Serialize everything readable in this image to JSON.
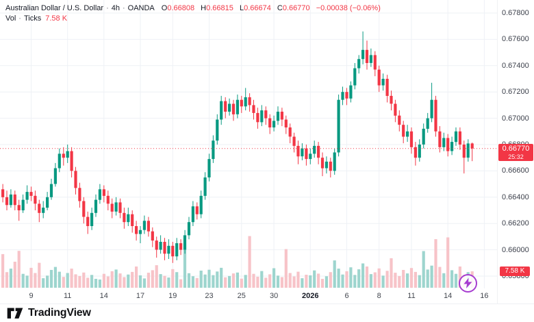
{
  "header": {
    "symbol_title": "Australian Dollar / U.S. Dollar",
    "separator": "·",
    "interval": "4h",
    "exchange": "OANDA",
    "ohlc": {
      "o_label": "O",
      "o": "0.66808",
      "h_label": "H",
      "h": "0.66815",
      "l_label": "L",
      "l": "0.66674",
      "c_label": "C",
      "c": "0.66770",
      "change": "−0.00038 (−0.06%)"
    },
    "volume_row": {
      "label": "Vol",
      "separator": "·",
      "source": "Ticks",
      "value": "7.58 K"
    }
  },
  "price_scale": {
    "last_price_label": "0.66770",
    "countdown": "25:32",
    "volume_badge_label": "7.58 K"
  },
  "footer": {
    "brand": "TradingView"
  },
  "colors": {
    "up": "#089981",
    "down": "#f23645",
    "vol_up": "#9dd5ce",
    "vol_down": "#f7c3c8",
    "badge": "#f23645",
    "grid": "#eef1f6",
    "axis_text": "#3c404b",
    "text": "#131722",
    "purple": "#a63cd0"
  },
  "chart_data": {
    "type": "candlestick",
    "title": "Australian Dollar / U.S. Dollar · 4h · OANDA",
    "symbol": "AUD/USD",
    "interval": "4h",
    "exchange": "OANDA",
    "legend_position": "top-left",
    "grid": true,
    "ylim": [
      0.65706,
      0.67899
    ],
    "y_ticks": [
      "0.67800",
      "0.67600",
      "0.67400",
      "0.67200",
      "0.67000",
      "0.66800",
      "0.66600",
      "0.66400",
      "0.66200",
      "0.66000",
      "0.65800"
    ],
    "x_ticks": [
      {
        "i": 7,
        "label": "9"
      },
      {
        "i": 16,
        "label": "11"
      },
      {
        "i": 25,
        "label": "14"
      },
      {
        "i": 34,
        "label": "17"
      },
      {
        "i": 42,
        "label": "19"
      },
      {
        "i": 51,
        "label": "23"
      },
      {
        "i": 59,
        "label": "25"
      },
      {
        "i": 67,
        "label": "30"
      },
      {
        "i": 76,
        "label": "2026",
        "bold": true
      },
      {
        "i": 85,
        "label": "6"
      },
      {
        "i": 93,
        "label": "8"
      },
      {
        "i": 101,
        "label": "11"
      },
      {
        "i": 110,
        "label": "14"
      },
      {
        "i": 119,
        "label": "16"
      }
    ],
    "last_price": 0.6677,
    "last_volume_k": 7.58,
    "volume_axis_max_k": 24,
    "candles": [
      [
        0.6646,
        0.665,
        0.6636,
        0.664
      ],
      [
        0.664,
        0.6645,
        0.663,
        0.6634
      ],
      [
        0.6634,
        0.6646,
        0.6632,
        0.6642
      ],
      [
        0.6642,
        0.6645,
        0.663,
        0.6634
      ],
      [
        0.6634,
        0.6638,
        0.6622,
        0.663
      ],
      [
        0.663,
        0.6642,
        0.6628,
        0.6638
      ],
      [
        0.6638,
        0.6649,
        0.6635,
        0.6644
      ],
      [
        0.6644,
        0.6648,
        0.6637,
        0.6641
      ],
      [
        0.6641,
        0.6645,
        0.663,
        0.6635
      ],
      [
        0.6635,
        0.6638,
        0.6621,
        0.6628
      ],
      [
        0.6628,
        0.6637,
        0.6624,
        0.6632
      ],
      [
        0.6632,
        0.6644,
        0.663,
        0.664
      ],
      [
        0.664,
        0.6654,
        0.6638,
        0.665
      ],
      [
        0.665,
        0.6666,
        0.6648,
        0.6662
      ],
      [
        0.6662,
        0.6677,
        0.6659,
        0.6673
      ],
      [
        0.6673,
        0.6678,
        0.6664,
        0.667
      ],
      [
        0.667,
        0.668,
        0.6666,
        0.6675
      ],
      [
        0.6675,
        0.6678,
        0.6655,
        0.666
      ],
      [
        0.666,
        0.6663,
        0.6642,
        0.6647
      ],
      [
        0.6647,
        0.6651,
        0.6632,
        0.6637
      ],
      [
        0.6637,
        0.664,
        0.662,
        0.6625
      ],
      [
        0.6625,
        0.6629,
        0.6612,
        0.6618
      ],
      [
        0.6618,
        0.6632,
        0.6615,
        0.6628
      ],
      [
        0.6628,
        0.6642,
        0.6625,
        0.6638
      ],
      [
        0.6638,
        0.665,
        0.6635,
        0.6646
      ],
      [
        0.6646,
        0.6649,
        0.6636,
        0.6641
      ],
      [
        0.6641,
        0.6645,
        0.663,
        0.6635
      ],
      [
        0.6635,
        0.6639,
        0.6624,
        0.6629
      ],
      [
        0.6629,
        0.664,
        0.6626,
        0.6636
      ],
      [
        0.6636,
        0.6639,
        0.6624,
        0.6628
      ],
      [
        0.6628,
        0.6632,
        0.6616,
        0.6621
      ],
      [
        0.6621,
        0.6632,
        0.6618,
        0.6627
      ],
      [
        0.6627,
        0.663,
        0.6613,
        0.6618
      ],
      [
        0.6618,
        0.6622,
        0.6607,
        0.6612
      ],
      [
        0.6612,
        0.6618,
        0.6605,
        0.6615
      ],
      [
        0.6615,
        0.6626,
        0.6612,
        0.6622
      ],
      [
        0.6622,
        0.6625,
        0.661,
        0.6614
      ],
      [
        0.6614,
        0.6617,
        0.6602,
        0.6607
      ],
      [
        0.6607,
        0.661,
        0.6594,
        0.66
      ],
      [
        0.66,
        0.6611,
        0.6597,
        0.6606
      ],
      [
        0.6606,
        0.6609,
        0.6592,
        0.6597
      ],
      [
        0.6597,
        0.6608,
        0.6593,
        0.6603
      ],
      [
        0.6603,
        0.6606,
        0.659,
        0.6595
      ],
      [
        0.6595,
        0.6609,
        0.6592,
        0.6605
      ],
      [
        0.6605,
        0.6608,
        0.6596,
        0.66
      ],
      [
        0.66,
        0.6615,
        0.6597,
        0.6611
      ],
      [
        0.6611,
        0.6625,
        0.6608,
        0.6621
      ],
      [
        0.6621,
        0.6637,
        0.6618,
        0.6633
      ],
      [
        0.6633,
        0.6636,
        0.6623,
        0.6627
      ],
      [
        0.6627,
        0.6645,
        0.6624,
        0.6641
      ],
      [
        0.6641,
        0.6659,
        0.6638,
        0.6655
      ],
      [
        0.6655,
        0.6673,
        0.6652,
        0.6669
      ],
      [
        0.6669,
        0.6687,
        0.6666,
        0.6683
      ],
      [
        0.6683,
        0.6703,
        0.668,
        0.6699
      ],
      [
        0.6699,
        0.6717,
        0.6695,
        0.6713
      ],
      [
        0.6713,
        0.6716,
        0.67,
        0.6705
      ],
      [
        0.6705,
        0.6715,
        0.6702,
        0.6711
      ],
      [
        0.6711,
        0.6714,
        0.6698,
        0.6703
      ],
      [
        0.6703,
        0.6718,
        0.67,
        0.6714
      ],
      [
        0.6714,
        0.6717,
        0.6704,
        0.6709
      ],
      [
        0.6709,
        0.6723,
        0.6706,
        0.6716
      ],
      [
        0.6716,
        0.6719,
        0.6705,
        0.671
      ],
      [
        0.671,
        0.6714,
        0.6699,
        0.6704
      ],
      [
        0.6704,
        0.6708,
        0.6692,
        0.6697
      ],
      [
        0.6697,
        0.671,
        0.6694,
        0.6706
      ],
      [
        0.6706,
        0.6709,
        0.6695,
        0.67
      ],
      [
        0.67,
        0.6703,
        0.6688,
        0.6693
      ],
      [
        0.6693,
        0.6702,
        0.669,
        0.6698
      ],
      [
        0.6698,
        0.6709,
        0.6695,
        0.6705
      ],
      [
        0.6705,
        0.6708,
        0.6694,
        0.6699
      ],
      [
        0.6699,
        0.6702,
        0.6688,
        0.6693
      ],
      [
        0.6693,
        0.6696,
        0.6681,
        0.6686
      ],
      [
        0.6686,
        0.6689,
        0.6674,
        0.6679
      ],
      [
        0.6679,
        0.6683,
        0.6665,
        0.6671
      ],
      [
        0.6671,
        0.6681,
        0.6668,
        0.6677
      ],
      [
        0.6677,
        0.668,
        0.6664,
        0.6669
      ],
      [
        0.6669,
        0.6677,
        0.6665,
        0.6673
      ],
      [
        0.6673,
        0.6683,
        0.667,
        0.6679
      ],
      [
        0.6679,
        0.6682,
        0.6665,
        0.667
      ],
      [
        0.667,
        0.6674,
        0.6656,
        0.6662
      ],
      [
        0.6662,
        0.6671,
        0.6658,
        0.6667
      ],
      [
        0.6667,
        0.667,
        0.6655,
        0.666
      ],
      [
        0.666,
        0.6677,
        0.6657,
        0.6674
      ],
      [
        0.6674,
        0.6718,
        0.6671,
        0.6714
      ],
      [
        0.6714,
        0.6724,
        0.671,
        0.672
      ],
      [
        0.672,
        0.6723,
        0.671,
        0.6715
      ],
      [
        0.6715,
        0.6728,
        0.6712,
        0.6725
      ],
      [
        0.6725,
        0.6742,
        0.6722,
        0.6738
      ],
      [
        0.6738,
        0.6748,
        0.6734,
        0.6745
      ],
      [
        0.6745,
        0.6766,
        0.6741,
        0.6752
      ],
      [
        0.6752,
        0.6759,
        0.6737,
        0.6742
      ],
      [
        0.6742,
        0.6753,
        0.6739,
        0.6748
      ],
      [
        0.6748,
        0.6751,
        0.6732,
        0.6737
      ],
      [
        0.6737,
        0.674,
        0.672,
        0.6725
      ],
      [
        0.6725,
        0.6734,
        0.6721,
        0.673
      ],
      [
        0.673,
        0.6733,
        0.6712,
        0.6717
      ],
      [
        0.6717,
        0.6721,
        0.6706,
        0.6711
      ],
      [
        0.6711,
        0.6714,
        0.6697,
        0.6702
      ],
      [
        0.6702,
        0.6706,
        0.669,
        0.6695
      ],
      [
        0.6695,
        0.6698,
        0.6681,
        0.6686
      ],
      [
        0.6686,
        0.6695,
        0.6682,
        0.669
      ],
      [
        0.669,
        0.6693,
        0.6673,
        0.6678
      ],
      [
        0.6678,
        0.6682,
        0.6664,
        0.667
      ],
      [
        0.667,
        0.6684,
        0.6667,
        0.668
      ],
      [
        0.668,
        0.6696,
        0.6677,
        0.6692
      ],
      [
        0.6692,
        0.6704,
        0.6689,
        0.67
      ],
      [
        0.67,
        0.6727,
        0.6697,
        0.6714
      ],
      [
        0.6714,
        0.6717,
        0.6686,
        0.669
      ],
      [
        0.669,
        0.6694,
        0.6674,
        0.6678
      ],
      [
        0.6678,
        0.6689,
        0.6675,
        0.6685
      ],
      [
        0.6685,
        0.6688,
        0.6671,
        0.6675
      ],
      [
        0.6675,
        0.6686,
        0.6672,
        0.6682
      ],
      [
        0.6682,
        0.6693,
        0.6679,
        0.669
      ],
      [
        0.669,
        0.6693,
        0.6676,
        0.668
      ],
      [
        0.668,
        0.6683,
        0.6658,
        0.667
      ],
      [
        0.667,
        0.6684,
        0.6667,
        0.66808
      ],
      [
        0.66808,
        0.66815,
        0.66674,
        0.6677
      ]
    ],
    "volumes_k": [
      15.5,
      7.2,
      8.8,
      12.0,
      17.0,
      6.4,
      5.6,
      9.2,
      6.8,
      11.5,
      4.4,
      5.6,
      8.2,
      9.6,
      7.4,
      5.0,
      6.8,
      8.8,
      6.2,
      5.4,
      7.0,
      4.6,
      5.9,
      4.1,
      3.8,
      6.4,
      5.2,
      7.6,
      8.4,
      6.6,
      4.9,
      6.1,
      7.3,
      9.8,
      5.7,
      4.3,
      6.9,
      8.1,
      10.4,
      6.3,
      5.5,
      4.7,
      8.6,
      7.2,
      3.9,
      20.5,
      6.7,
      5.3,
      4.5,
      7.9,
      6.1,
      8.3,
      5.8,
      7.5,
      9.2,
      4.8,
      5.4,
      6.6,
      7.0,
      4.2,
      5.9,
      23.8,
      6.4,
      5.1,
      7.7,
      4.6,
      6.2,
      9.0,
      5.6,
      4.9,
      17.8,
      6.8,
      5.2,
      7.4,
      4.4,
      6.0,
      5.7,
      8.0,
      6.5,
      4.1,
      5.3,
      7.2,
      12.6,
      8.8,
      6.1,
      7.6,
      9.4,
      5.9,
      8.5,
      11.2,
      9.8,
      6.3,
      7.1,
      8.9,
      5.6,
      7.8,
      13.6,
      6.9,
      5.4,
      8.2,
      6.6,
      9.1,
      7.3,
      5.8,
      16.9,
      8.4,
      10.2,
      22.4,
      9.6,
      6.7,
      23.2,
      8.1,
      6.4,
      9.8,
      5.9,
      7.2,
      7.58
    ]
  }
}
